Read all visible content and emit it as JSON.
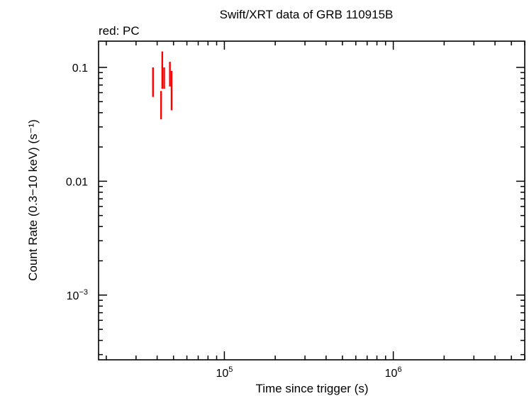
{
  "chart_data": {
    "type": "scatter",
    "title": "Swift/XRT data of GRB 110915B",
    "subtitle": "red: PC",
    "xlabel": "Time since trigger (s)",
    "ylabel": "Count Rate (0.3−10 keV) (s⁻¹)",
    "x_scale": "log",
    "y_scale": "log",
    "xlim": [
      18000,
      6000000
    ],
    "ylim": [
      0.00027,
      0.17
    ],
    "x_ticks": [
      {
        "value": 100000,
        "base": "10",
        "exp": "5"
      },
      {
        "value": 1000000,
        "base": "10",
        "exp": "6"
      }
    ],
    "y_ticks": [
      {
        "value": 0.1,
        "label": "0.1"
      },
      {
        "value": 0.01,
        "label": "0.01"
      },
      {
        "value": 0.001,
        "base": "10",
        "exp": "−3"
      }
    ],
    "grid": false,
    "legend": "top-left",
    "series": [
      {
        "name": "PC",
        "color": "#ff0000",
        "points": [
          {
            "x": 37800,
            "x_err": [
              37500,
              38100
            ],
            "y": 0.077,
            "y_err": [
              0.055,
              0.1
            ]
          },
          {
            "x": 42200,
            "x_err": [
              41900,
              42500
            ],
            "y": 0.047,
            "y_err": [
              0.035,
              0.062
            ]
          },
          {
            "x": 42900,
            "x_err": [
              42600,
              43200
            ],
            "y": 0.09,
            "y_err": [
              0.065,
              0.138
            ]
          },
          {
            "x": 44000,
            "x_err": [
              43700,
              44300
            ],
            "y": 0.082,
            "y_err": [
              0.065,
              0.1
            ]
          },
          {
            "x": 47600,
            "x_err": [
              47300,
              47900
            ],
            "y": 0.088,
            "y_err": [
              0.068,
              0.112
            ]
          },
          {
            "x": 48700,
            "x_err": [
              48300,
              49100
            ],
            "y": 0.056,
            "y_err": [
              0.042,
              0.093
            ]
          }
        ]
      }
    ]
  }
}
